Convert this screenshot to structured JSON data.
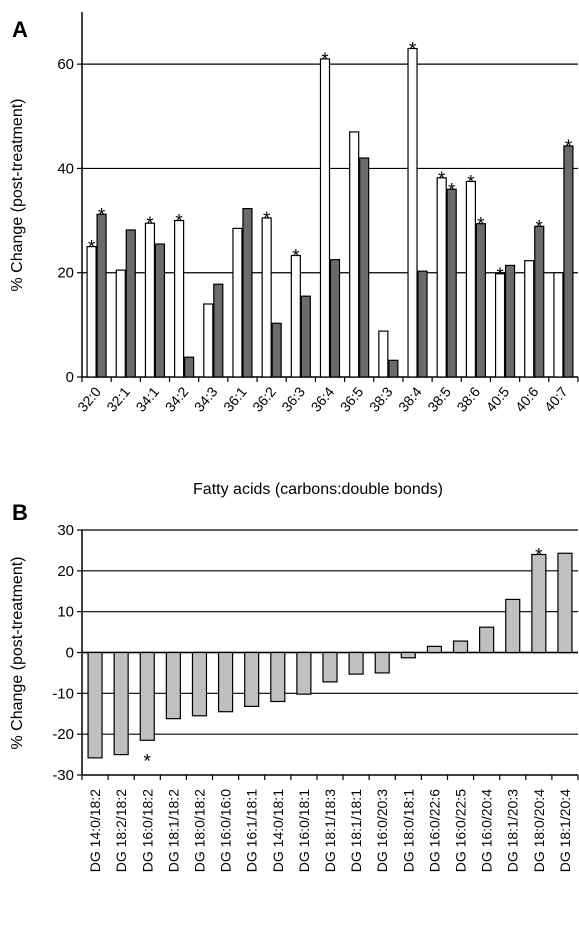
{
  "chart_data": [
    {
      "panel_label": "A",
      "type": "bar",
      "xlabel": "Fatty acids (carbons:double bonds)",
      "ylabel": "% Change (post-treatment)",
      "ylim": [
        0,
        70
      ],
      "yticks": [
        0,
        20,
        40,
        60
      ],
      "grid": "horizontal",
      "colors": {
        "series1": "#ffffff",
        "series2": "#6b6b6b"
      },
      "categories": [
        "32:0",
        "32:1",
        "34:1",
        "34:2",
        "34:3",
        "36:1",
        "36:2",
        "36:3",
        "36:4",
        "36:5",
        "38:3",
        "38:4",
        "38:5",
        "38:6",
        "40:5",
        "40:6",
        "40:7"
      ],
      "series": [
        {
          "values": [
            25,
            20.5,
            29.5,
            30,
            14,
            28.5,
            30.5,
            23.3,
            61,
            47,
            8.8,
            63,
            38.2,
            37.5,
            19.8,
            22.3,
            20
          ],
          "significant": [
            true,
            false,
            true,
            true,
            false,
            false,
            true,
            true,
            true,
            false,
            false,
            true,
            true,
            true,
            true,
            false,
            false
          ]
        },
        {
          "values": [
            31.2,
            28.2,
            25.5,
            3.8,
            17.8,
            32.3,
            10.3,
            15.5,
            22.5,
            42,
            3.2,
            20.3,
            36,
            29.4,
            21.4,
            28.9,
            44.3
          ],
          "significant": [
            true,
            false,
            false,
            false,
            false,
            false,
            false,
            false,
            false,
            false,
            false,
            false,
            true,
            true,
            false,
            true,
            true
          ]
        }
      ],
      "annotation_symbol": "*"
    },
    {
      "panel_label": "B",
      "type": "bar",
      "xlabel": "",
      "ylabel": "% Change (post-treatment)",
      "ylim": [
        -30,
        30
      ],
      "yticks": [
        -30,
        -20,
        -10,
        0,
        10,
        20,
        30
      ],
      "grid": "horizontal",
      "colors": {
        "bar": "#c0c0c0"
      },
      "categories": [
        "DG 14:0/18:2",
        "DG 18:2/18:2",
        "DG 16:0/18:2",
        "DG 18:1/18:2",
        "DG 18:0/18:2",
        "DG 16:0/16:0",
        "DG 16:1/18:1",
        "DG 14:0/18:1",
        "DG 16:0/18:1",
        "DG 18:1/18:3",
        "DG 18:1/18:1",
        "DG 16:0/20:3",
        "DG 18:0/18:1",
        "DG 16:0/22:6",
        "DG 16:0/22:5",
        "DG 16:0/20:4",
        "DG 18:1/20:3",
        "DG 18:0/20:4",
        "DG 18:1/20:4"
      ],
      "series": [
        {
          "values": [
            -25.8,
            -25,
            -21.5,
            -16.2,
            -15.5,
            -14.5,
            -13.2,
            -12,
            -10.2,
            -7.2,
            -5.3,
            -5,
            -1.3,
            1.5,
            2.8,
            6.2,
            13,
            24,
            24.3
          ],
          "significant": [
            false,
            false,
            true,
            false,
            false,
            false,
            false,
            false,
            false,
            false,
            false,
            false,
            false,
            false,
            false,
            false,
            false,
            true,
            false
          ]
        }
      ],
      "annotation_symbol": "*"
    }
  ]
}
